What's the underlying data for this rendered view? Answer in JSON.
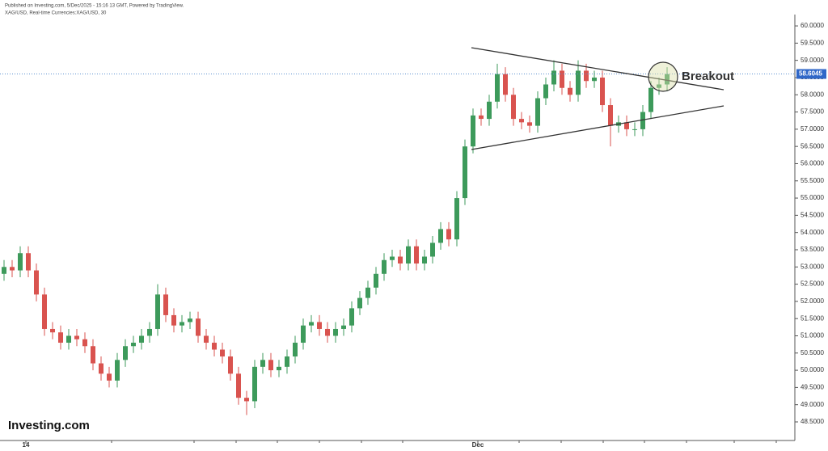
{
  "header": {
    "published": "Published on Investing.com, 5/Dec/2025 - 15:16 13 GMT, Powered by TradingView.",
    "symbol": "XAG/USD, Real-time Currencies:XAG/USD, 30"
  },
  "logo": "Investing.com",
  "chart_data": {
    "type": "candlestick",
    "annotation": "Breakout",
    "current_price": 58.6045,
    "x_labels": [
      "14",
      "Dec"
    ],
    "up_color": "#3d9a5b",
    "down_color": "#d9534f",
    "ylim": [
      47.96,
      60.33
    ],
    "yticks": [
      {
        "value": 48.5,
        "label": "48.5000"
      },
      {
        "value": 49,
        "label": "49.0000"
      },
      {
        "value": 49.5,
        "label": "49.5000"
      },
      {
        "value": 50,
        "label": "50.0000"
      },
      {
        "value": 50.5,
        "label": "50.5000"
      },
      {
        "value": 51,
        "label": "51.0000"
      },
      {
        "value": 51.5,
        "label": "51.5000"
      },
      {
        "value": 52,
        "label": "52.0000"
      },
      {
        "value": 52.5,
        "label": "52.5000"
      },
      {
        "value": 53,
        "label": "53.0000"
      },
      {
        "value": 53.5,
        "label": "53.5000"
      },
      {
        "value": 54,
        "label": "54.0000"
      },
      {
        "value": 54.5,
        "label": "54.5000"
      },
      {
        "value": 55,
        "label": "55.0000"
      },
      {
        "value": 55.5,
        "label": "55.5000"
      },
      {
        "value": 56,
        "label": "56.0000"
      },
      {
        "value": 56.5,
        "label": "56.5000"
      },
      {
        "value": 57,
        "label": "57.0000"
      },
      {
        "value": 57.5,
        "label": "57.5000"
      },
      {
        "value": 58,
        "label": "58.0000"
      },
      {
        "value": 58.5,
        "label": "58.5000"
      },
      {
        "value": 59,
        "label": "59.0000"
      },
      {
        "value": 59.5,
        "label": "59.5000"
      },
      {
        "value": 60,
        "label": "60.0000"
      }
    ],
    "open": [
      52.8,
      53.0,
      52.9,
      53.4,
      52.9,
      52.2,
      51.2,
      51.1,
      50.8,
      51.0,
      50.9,
      50.7,
      50.2,
      49.9,
      49.7,
      50.3,
      50.7,
      50.8,
      51.0,
      51.2,
      52.2,
      51.6,
      51.3,
      51.4,
      51.5,
      51.0,
      50.8,
      50.6,
      50.4,
      49.9,
      49.2,
      49.1,
      50.1,
      50.3,
      50.0,
      50.1,
      50.4,
      50.8,
      51.3,
      51.4,
      51.2,
      51.0,
      51.2,
      51.3,
      51.8,
      52.1,
      52.4,
      52.8,
      53.2,
      53.3,
      53.1,
      53.6,
      53.1,
      53.3,
      53.7,
      54.1,
      53.8,
      55.0,
      56.5,
      57.4,
      57.3,
      57.8,
      58.6,
      58.0,
      57.3,
      57.2,
      57.1,
      57.9,
      58.3,
      58.7,
      58.2,
      58.0,
      58.7,
      58.4,
      58.5,
      57.7,
      57.1,
      57.2,
      57.0,
      57.0,
      57.5,
      58.2,
      58.3
    ],
    "high": [
      53.2,
      53.2,
      53.6,
      53.6,
      53.1,
      52.4,
      51.4,
      51.3,
      51.2,
      51.2,
      51.1,
      50.9,
      50.4,
      50.1,
      50.5,
      50.9,
      51.0,
      51.2,
      51.4,
      52.5,
      52.4,
      51.8,
      51.6,
      51.7,
      51.7,
      51.2,
      51.0,
      50.8,
      50.6,
      50.1,
      49.4,
      50.3,
      50.5,
      50.5,
      50.3,
      50.6,
      51.0,
      51.5,
      51.6,
      51.6,
      51.4,
      51.4,
      51.5,
      52.0,
      52.3,
      52.6,
      53.0,
      53.4,
      53.5,
      53.5,
      53.8,
      53.8,
      53.5,
      53.9,
      54.3,
      54.3,
      55.2,
      56.7,
      57.6,
      57.6,
      58.0,
      58.9,
      58.8,
      58.2,
      57.5,
      57.4,
      58.1,
      58.5,
      59.0,
      58.9,
      58.4,
      59.0,
      58.9,
      58.7,
      58.7,
      57.9,
      57.4,
      57.4,
      57.2,
      57.7,
      58.4,
      58.5,
      58.8
    ],
    "low": [
      52.6,
      52.7,
      52.7,
      52.7,
      52.0,
      51.0,
      50.9,
      50.6,
      50.6,
      50.7,
      50.5,
      50.0,
      49.7,
      49.5,
      49.5,
      50.1,
      50.5,
      50.6,
      50.8,
      51.0,
      51.4,
      51.1,
      51.1,
      51.2,
      50.8,
      50.6,
      50.4,
      50.2,
      49.7,
      49.0,
      48.7,
      48.9,
      49.9,
      49.8,
      49.8,
      49.9,
      50.2,
      50.6,
      51.1,
      51.0,
      50.8,
      50.8,
      51.0,
      51.1,
      51.6,
      51.9,
      52.2,
      52.6,
      53.0,
      52.9,
      52.9,
      52.9,
      52.9,
      53.1,
      53.5,
      53.6,
      53.6,
      54.8,
      56.3,
      57.1,
      57.1,
      57.6,
      57.8,
      57.1,
      57.0,
      56.9,
      56.9,
      57.7,
      58.1,
      58.0,
      57.8,
      57.8,
      58.2,
      58.2,
      57.5,
      56.5,
      56.9,
      56.8,
      56.8,
      56.8,
      57.3,
      58.0,
      58.1
    ],
    "close": [
      53.0,
      52.9,
      53.4,
      52.9,
      52.2,
      51.2,
      51.1,
      50.8,
      51.0,
      50.9,
      50.7,
      50.2,
      49.9,
      49.7,
      50.3,
      50.7,
      50.8,
      51.0,
      51.2,
      52.2,
      51.6,
      51.3,
      51.4,
      51.5,
      51.0,
      50.8,
      50.6,
      50.4,
      49.9,
      49.2,
      49.1,
      50.1,
      50.3,
      50.0,
      50.1,
      50.4,
      50.8,
      51.3,
      51.4,
      51.2,
      51.0,
      51.2,
      51.3,
      51.8,
      52.1,
      52.4,
      52.8,
      53.2,
      53.3,
      53.1,
      53.6,
      53.1,
      53.3,
      53.7,
      54.1,
      53.8,
      55.0,
      56.5,
      57.4,
      57.3,
      57.8,
      58.6,
      58.0,
      57.3,
      57.2,
      57.1,
      57.9,
      58.3,
      58.7,
      58.2,
      58.0,
      58.7,
      58.4,
      58.5,
      57.7,
      57.1,
      57.2,
      57.0,
      57.0,
      57.5,
      58.2,
      58.3,
      58.6
    ]
  }
}
